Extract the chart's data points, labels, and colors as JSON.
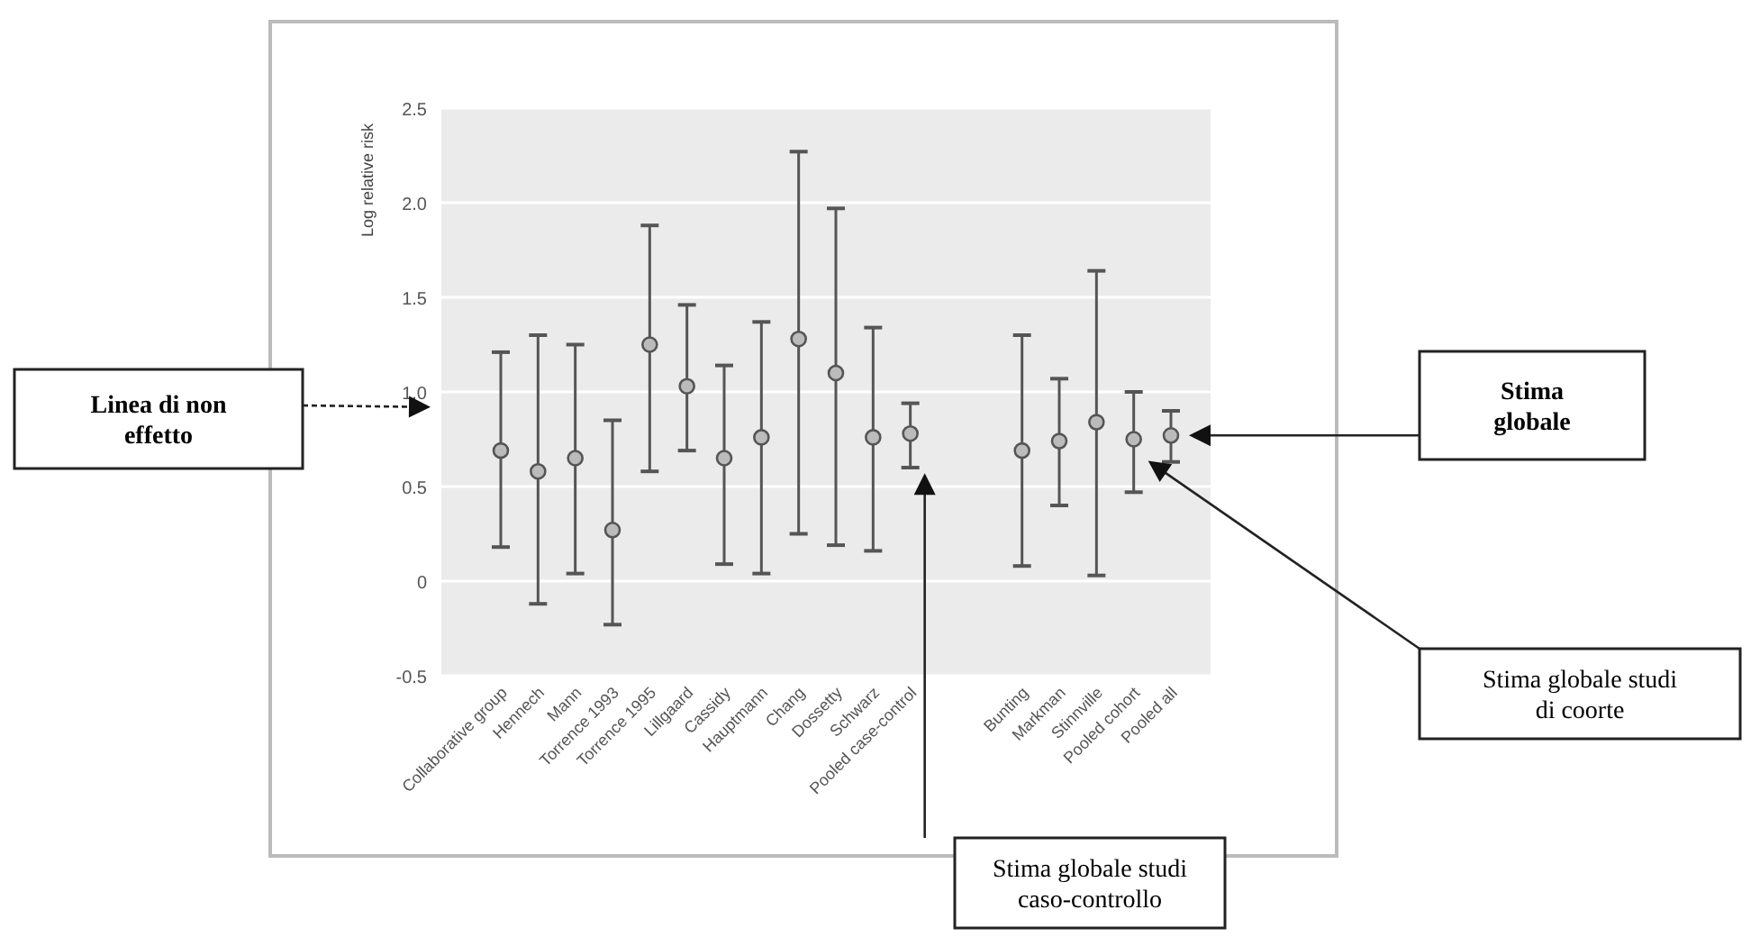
{
  "chart_data": {
    "type": "scatter",
    "ylabel": "Log relative risk",
    "categories": [
      "Collaborative group",
      "Hennech",
      "Mann",
      "Torrence 1993",
      "Torrence 1995",
      "Lillgaard",
      "Cassidy",
      "Hauptmann",
      "Chang",
      "Dossetty",
      "Schwarz",
      "Pooled case-control",
      null,
      null,
      "Bunting",
      "Markman",
      "Stinnville",
      "Pooled cohort",
      "Pooled all"
    ],
    "values": [
      0.69,
      0.58,
      0.65,
      0.27,
      1.25,
      1.03,
      0.65,
      0.76,
      1.28,
      1.1,
      0.76,
      0.78,
      null,
      null,
      0.69,
      0.74,
      0.84,
      0.75,
      0.77
    ],
    "errors": [
      [
        0.18,
        1.21
      ],
      [
        -0.12,
        1.3
      ],
      [
        0.04,
        1.25
      ],
      [
        -0.23,
        0.85
      ],
      [
        0.58,
        1.88
      ],
      [
        0.69,
        1.46
      ],
      [
        0.09,
        1.14
      ],
      [
        0.04,
        1.37
      ],
      [
        0.25,
        2.27
      ],
      [
        0.19,
        1.97
      ],
      [
        0.16,
        1.34
      ],
      [
        0.6,
        0.94
      ],
      null,
      null,
      [
        0.08,
        1.3
      ],
      [
        0.4,
        1.07
      ],
      [
        0.03,
        1.64
      ],
      [
        0.47,
        1.0
      ],
      [
        0.63,
        0.9
      ]
    ],
    "color": "#555555",
    "marker": "circle",
    "grid": "y",
    "ylim": [
      -0.5,
      2.5
    ],
    "yticks": [
      {
        "value": -0.5,
        "label": "-0.5"
      },
      0,
      {
        "value": 0.5,
        "label": "0.5"
      },
      {
        "value": 1,
        "label": "1.0"
      },
      {
        "value": 1.5,
        "label": "1.5"
      },
      {
        "value": 2,
        "label": "2.0"
      },
      {
        "value": 2.5,
        "label": "2.5"
      }
    ],
    "annotations": [
      "Linea di non effetto",
      "Stima globale studi caso-controllo",
      "Stima globale studi di coorte",
      "Stima globale"
    ]
  }
}
